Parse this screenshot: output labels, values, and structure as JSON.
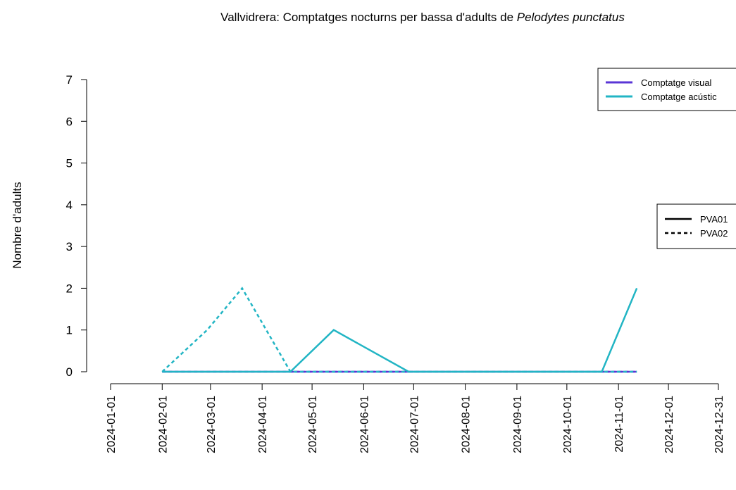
{
  "chart_data": {
    "type": "line",
    "title": "Vallvidrera: Comptatges nocturns per bassa d'adults de ",
    "title_species": "Pelodytes punctatus",
    "ylabel": "Nombre d'adults",
    "xlim": [
      "2024-01-01",
      "2024-12-31"
    ],
    "xticks": [
      "2024-01-01",
      "2024-02-01",
      "2024-03-01",
      "2024-04-01",
      "2024-05-01",
      "2024-06-01",
      "2024-07-01",
      "2024-08-01",
      "2024-09-01",
      "2024-10-01",
      "2024-11-01",
      "2024-12-01",
      "2024-12-31"
    ],
    "ylim": [
      0,
      7
    ],
    "yticks": [
      0,
      1,
      2,
      3,
      4,
      5,
      6,
      7
    ],
    "legend_method": [
      {
        "label": "Comptatge visual",
        "color": "#5a35d6"
      },
      {
        "label": "Comptatge acústic",
        "color": "#22b5c4"
      }
    ],
    "legend_site": [
      {
        "label": "PVA01",
        "dashed": false
      },
      {
        "label": "PVA02",
        "dashed": true
      }
    ],
    "series": [
      {
        "method": 0,
        "site": 0,
        "x": [
          "2024-02-01",
          "2024-04-18",
          "2024-05-14",
          "2024-06-28",
          "2024-10-22",
          "2024-11-12"
        ],
        "values": [
          0,
          0,
          0,
          0,
          0,
          0
        ]
      },
      {
        "method": 0,
        "site": 1,
        "x": [
          "2024-02-01",
          "2024-02-28",
          "2024-03-20",
          "2024-04-18",
          "2024-11-12"
        ],
        "values": [
          0,
          0,
          0,
          0,
          0
        ]
      },
      {
        "method": 1,
        "site": 1,
        "x": [
          "2024-02-01",
          "2024-02-28",
          "2024-03-20",
          "2024-04-18",
          "2024-11-12"
        ],
        "values": [
          0,
          1,
          2,
          0,
          0
        ]
      },
      {
        "method": 1,
        "site": 0,
        "x": [
          "2024-02-01",
          "2024-04-18",
          "2024-05-14",
          "2024-06-28",
          "2024-10-22",
          "2024-11-12"
        ],
        "values": [
          0,
          0,
          1,
          0,
          0,
          2
        ]
      }
    ]
  }
}
